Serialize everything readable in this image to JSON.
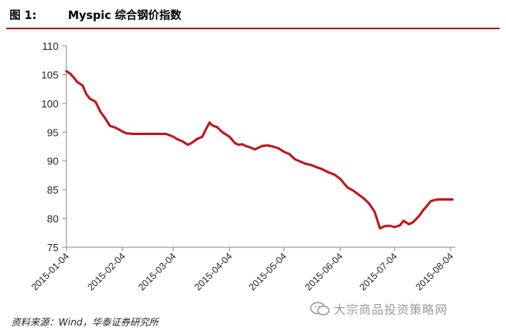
{
  "header": {
    "fig_label": "图 1:",
    "fig_title": "Myspic 综合钢价指数"
  },
  "footer": {
    "source": "资料来源：Wind，华泰证券研究所",
    "corner_mark": "",
    "watermark": "大宗商品投资策略网"
  },
  "colors": {
    "line": "#c0161c",
    "rule": "#b21a1a",
    "axis": "#8a8a8a"
  },
  "chart_data": {
    "type": "line",
    "x_tick_labels": [
      "2015-01-04",
      "2015-02-04",
      "2015-03-04",
      "2015-04-04",
      "2015-05-04",
      "2015-06-04",
      "2015-07-04",
      "2015-08-04"
    ],
    "y_tick_labels": [
      "75",
      "80",
      "85",
      "90",
      "95",
      "100",
      "105",
      "110"
    ],
    "ylim": [
      75,
      110
    ],
    "xlim": [
      "2015-01-04",
      "2015-08-04"
    ],
    "grid": false,
    "series": [
      {
        "x": [
          "2015-01-04",
          "2015-01-06",
          "2015-01-08",
          "2015-01-10",
          "2015-01-13",
          "2015-01-15",
          "2015-01-17",
          "2015-01-20",
          "2015-01-23",
          "2015-01-25",
          "2015-01-28",
          "2015-01-31",
          "2015-02-04",
          "2015-02-06",
          "2015-02-10",
          "2015-02-15",
          "2015-02-20",
          "2015-02-25",
          "2015-02-28",
          "2015-03-04",
          "2015-03-06",
          "2015-03-09",
          "2015-03-12",
          "2015-03-14",
          "2015-03-17",
          "2015-03-20",
          "2015-03-22",
          "2015-03-24",
          "2015-03-25",
          "2015-03-26",
          "2015-03-28",
          "2015-03-31",
          "2015-04-04",
          "2015-04-07",
          "2015-04-09",
          "2015-04-11",
          "2015-04-13",
          "2015-04-15",
          "2015-04-18",
          "2015-04-22",
          "2015-04-25",
          "2015-04-28",
          "2015-05-01",
          "2015-05-04",
          "2015-05-07",
          "2015-05-10",
          "2015-05-13",
          "2015-05-16",
          "2015-05-19",
          "2015-05-22",
          "2015-05-25",
          "2015-05-28",
          "2015-06-01",
          "2015-06-04",
          "2015-06-08",
          "2015-06-11",
          "2015-06-14",
          "2015-06-17",
          "2015-06-20",
          "2015-06-23",
          "2015-06-26",
          "2015-06-29",
          "2015-07-02",
          "2015-07-04",
          "2015-07-07",
          "2015-07-09",
          "2015-07-12",
          "2015-07-14",
          "2015-07-16",
          "2015-07-18",
          "2015-07-20",
          "2015-07-22",
          "2015-07-24",
          "2015-07-26",
          "2015-07-28",
          "2015-07-31",
          "2015-08-02",
          "2015-08-04",
          "2015-08-05"
        ],
        "y": [
          105.6,
          105.2,
          104.5,
          103.7,
          103.1,
          101.6,
          100.8,
          100.3,
          98.4,
          97.6,
          96.1,
          95.8,
          95.1,
          94.8,
          94.7,
          94.7,
          94.7,
          94.7,
          94.7,
          94.2,
          93.8,
          93.4,
          92.8,
          93.1,
          93.8,
          94.2,
          95.5,
          96.7,
          96.3,
          96.1,
          95.9,
          95.0,
          94.2,
          93.1,
          92.8,
          92.9,
          92.6,
          92.4,
          92.0,
          92.6,
          92.7,
          92.5,
          92.2,
          91.6,
          91.2,
          90.3,
          89.9,
          89.5,
          89.3,
          88.9,
          88.6,
          88.1,
          87.6,
          86.9,
          85.4,
          84.9,
          84.2,
          83.5,
          82.6,
          81.2,
          78.3,
          78.7,
          78.7,
          78.5,
          78.8,
          79.6,
          79.0,
          79.3,
          79.9,
          80.6,
          81.5,
          82.2,
          83.0,
          83.2,
          83.3,
          83.3,
          83.3,
          83.3,
          83.3
        ]
      }
    ]
  }
}
